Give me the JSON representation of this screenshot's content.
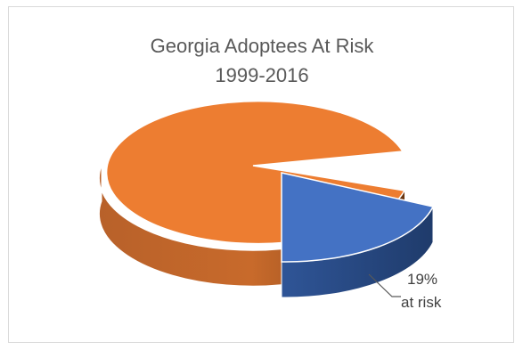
{
  "chart_data": {
    "type": "pie",
    "title": "Georgia Adoptees At Risk",
    "subtitle": "1999-2016",
    "slices": [
      {
        "label": "",
        "value": 81,
        "color": "#ed7d31"
      },
      {
        "label": "19% at risk",
        "value": 19,
        "color": "#4472c4"
      }
    ],
    "data_labels": {
      "at_risk_percent": "19%",
      "at_risk_text": "at risk"
    },
    "style": "3d-exploded",
    "legend": "none"
  }
}
